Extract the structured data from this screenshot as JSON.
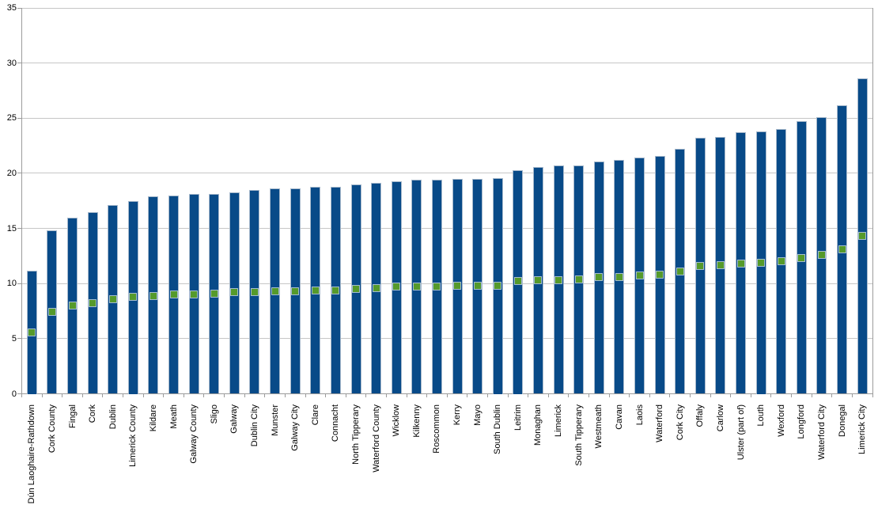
{
  "chart_data": {
    "type": "bar",
    "title": "",
    "xlabel": "",
    "ylabel": "",
    "ylim": [
      0,
      35
    ],
    "yticks": [
      0,
      5,
      10,
      15,
      20,
      25,
      30,
      35
    ],
    "grid": true,
    "legend_position": "none",
    "categories": [
      "Dún Laoghaire-Rathdown",
      "Cork County",
      "Fingal",
      "Cork",
      "Dublin",
      "Limerick County",
      "Kildare",
      "Meath",
      "Galway County",
      "Sligo",
      "Galway",
      "Dublin City",
      "Munster",
      "Galway City",
      "Clare",
      "Connacht",
      "North Tipperary",
      "Waterford County",
      "Wicklow",
      "Kilkenny",
      "Roscommon",
      "Kerry",
      "Mayo",
      "South Dublin",
      "Leitrim",
      "Monaghan",
      "Limerick",
      "South Tipperary",
      "Westmeath",
      "Cavan",
      "Laois",
      "Waterford",
      "Cork City",
      "Offaly",
      "Carlow",
      "Ulster (part of)",
      "Louth",
      "Wexford",
      "Longford",
      "Waterford City",
      "Donegal",
      "Limerick City"
    ],
    "series": [
      {
        "name": "bars",
        "type": "bar",
        "color": "#084a88",
        "values": [
          11.2,
          14.8,
          16.0,
          16.5,
          17.1,
          17.5,
          17.9,
          18.0,
          18.1,
          18.1,
          18.3,
          18.5,
          18.6,
          18.6,
          18.8,
          18.8,
          19.0,
          19.1,
          19.3,
          19.4,
          19.4,
          19.5,
          19.5,
          19.6,
          20.3,
          20.6,
          20.7,
          20.7,
          21.1,
          21.2,
          21.4,
          21.6,
          22.2,
          23.2,
          23.3,
          23.7,
          23.8,
          24.0,
          24.7,
          25.1,
          26.2,
          28.6
        ]
      },
      {
        "name": "points",
        "type": "scatter",
        "marker": "square",
        "color": "#559a2b",
        "values": [
          5.6,
          7.4,
          8.0,
          8.2,
          8.6,
          8.8,
          8.9,
          9.0,
          9.0,
          9.1,
          9.2,
          9.2,
          9.3,
          9.3,
          9.4,
          9.4,
          9.5,
          9.6,
          9.7,
          9.7,
          9.7,
          9.8,
          9.8,
          9.8,
          10.2,
          10.3,
          10.3,
          10.4,
          10.6,
          10.6,
          10.7,
          10.8,
          11.1,
          11.6,
          11.7,
          11.8,
          11.9,
          12.0,
          12.3,
          12.6,
          13.1,
          14.3
        ]
      }
    ]
  },
  "style": {
    "colors": {
      "background": "#ffffff",
      "bar_fill": "#084a88",
      "bar_border": "#a7b9cc",
      "marker_fill": "#559a2b",
      "marker_border": "#a4bccf",
      "gridline": "#c6c6c6",
      "axis": "#9b9b9b",
      "text": "#000000"
    }
  }
}
